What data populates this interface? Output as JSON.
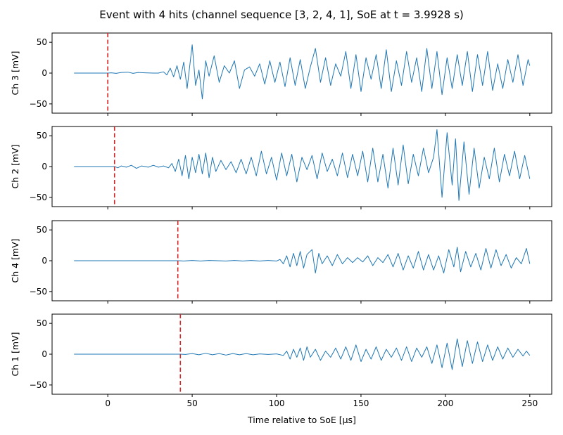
{
  "chart_data": {
    "type": "line",
    "title": "Event with 4 hits (channel sequence [3, 2, 4, 1], SoE at t = 3.9928 s)",
    "xlabel": "Time relative to SoE [µs]",
    "xlim": [
      -33,
      263
    ],
    "ylim": [
      -65,
      65
    ],
    "x_ticks": [
      0,
      50,
      100,
      150,
      200,
      250
    ],
    "x_tick_labels": [
      "0",
      "50",
      "100",
      "150",
      "200",
      "250"
    ],
    "y_ticks": [
      50,
      0,
      -50
    ],
    "y_tick_labels": [
      "50",
      "0",
      "−50"
    ],
    "line_color": "#1f77b4",
    "marker_color": "#d62728",
    "panels": [
      {
        "ylabel": "Ch 3 [mV]",
        "arrival_us": 0,
        "signal": [
          [
            -20,
            0
          ],
          [
            0,
            0
          ],
          [
            2,
            0.5
          ],
          [
            5,
            -0.5
          ],
          [
            8,
            1
          ],
          [
            12,
            1.5
          ],
          [
            15,
            -0.5
          ],
          [
            18,
            1
          ],
          [
            22,
            0.5
          ],
          [
            27,
            0
          ],
          [
            30,
            0
          ],
          [
            33,
            2
          ],
          [
            35,
            -3
          ],
          [
            37,
            8
          ],
          [
            39,
            -6
          ],
          [
            41,
            12
          ],
          [
            43,
            -10
          ],
          [
            45,
            18
          ],
          [
            47,
            -25
          ],
          [
            50,
            46
          ],
          [
            52,
            -20
          ],
          [
            54,
            5
          ],
          [
            56,
            -42
          ],
          [
            58,
            20
          ],
          [
            60,
            -5
          ],
          [
            63,
            28
          ],
          [
            66,
            -15
          ],
          [
            69,
            12
          ],
          [
            72,
            0
          ],
          [
            75,
            20
          ],
          [
            78,
            -25
          ],
          [
            81,
            5
          ],
          [
            84,
            10
          ],
          [
            87,
            -5
          ],
          [
            90,
            15
          ],
          [
            93,
            -18
          ],
          [
            96,
            20
          ],
          [
            99,
            -15
          ],
          [
            102,
            18
          ],
          [
            105,
            -22
          ],
          [
            108,
            25
          ],
          [
            111,
            -20
          ],
          [
            114,
            22
          ],
          [
            117,
            -25
          ],
          [
            120,
            10
          ],
          [
            123,
            40
          ],
          [
            126,
            -15
          ],
          [
            129,
            25
          ],
          [
            132,
            -20
          ],
          [
            135,
            15
          ],
          [
            138,
            -5
          ],
          [
            141,
            35
          ],
          [
            144,
            -25
          ],
          [
            147,
            30
          ],
          [
            150,
            -30
          ],
          [
            153,
            25
          ],
          [
            156,
            -10
          ],
          [
            159,
            30
          ],
          [
            162,
            -25
          ],
          [
            165,
            38
          ],
          [
            168,
            -30
          ],
          [
            171,
            20
          ],
          [
            174,
            -20
          ],
          [
            177,
            35
          ],
          [
            180,
            -15
          ],
          [
            183,
            25
          ],
          [
            186,
            -30
          ],
          [
            189,
            40
          ],
          [
            192,
            -25
          ],
          [
            195,
            35
          ],
          [
            198,
            -35
          ],
          [
            201,
            25
          ],
          [
            204,
            -25
          ],
          [
            207,
            30
          ],
          [
            210,
            -20
          ],
          [
            213,
            35
          ],
          [
            216,
            -30
          ],
          [
            219,
            30
          ],
          [
            222,
            -20
          ],
          [
            225,
            35
          ],
          [
            228,
            -28
          ],
          [
            231,
            15
          ],
          [
            234,
            -25
          ],
          [
            237,
            22
          ],
          [
            240,
            -15
          ],
          [
            243,
            30
          ],
          [
            246,
            -20
          ],
          [
            249,
            22
          ],
          [
            250,
            12
          ]
        ]
      },
      {
        "ylabel": "Ch 2 [mV]",
        "arrival_us": 4,
        "signal": [
          [
            -20,
            0
          ],
          [
            4,
            0
          ],
          [
            6,
            -2
          ],
          [
            8,
            1
          ],
          [
            11,
            -1
          ],
          [
            14,
            2
          ],
          [
            17,
            -3
          ],
          [
            20,
            1
          ],
          [
            24,
            -1
          ],
          [
            27,
            2
          ],
          [
            30,
            -1
          ],
          [
            33,
            1
          ],
          [
            36,
            -2
          ],
          [
            38,
            5
          ],
          [
            40,
            -8
          ],
          [
            42,
            12
          ],
          [
            44,
            -15
          ],
          [
            46,
            18
          ],
          [
            48,
            -20
          ],
          [
            50,
            15
          ],
          [
            52,
            -10
          ],
          [
            54,
            20
          ],
          [
            56,
            -12
          ],
          [
            58,
            22
          ],
          [
            60,
            -18
          ],
          [
            62,
            15
          ],
          [
            64,
            -8
          ],
          [
            67,
            10
          ],
          [
            70,
            -5
          ],
          [
            73,
            8
          ],
          [
            76,
            -10
          ],
          [
            79,
            12
          ],
          [
            82,
            -12
          ],
          [
            85,
            15
          ],
          [
            88,
            -15
          ],
          [
            91,
            25
          ],
          [
            94,
            -12
          ],
          [
            97,
            15
          ],
          [
            100,
            -22
          ],
          [
            103,
            22
          ],
          [
            106,
            -15
          ],
          [
            109,
            20
          ],
          [
            112,
            -25
          ],
          [
            115,
            15
          ],
          [
            118,
            -5
          ],
          [
            121,
            18
          ],
          [
            124,
            -20
          ],
          [
            127,
            22
          ],
          [
            130,
            -8
          ],
          [
            133,
            12
          ],
          [
            136,
            -15
          ],
          [
            139,
            22
          ],
          [
            142,
            -18
          ],
          [
            145,
            20
          ],
          [
            148,
            -15
          ],
          [
            151,
            25
          ],
          [
            154,
            -25
          ],
          [
            157,
            30
          ],
          [
            160,
            -25
          ],
          [
            163,
            20
          ],
          [
            166,
            -35
          ],
          [
            169,
            30
          ],
          [
            172,
            -30
          ],
          [
            175,
            35
          ],
          [
            178,
            -28
          ],
          [
            181,
            20
          ],
          [
            184,
            -15
          ],
          [
            187,
            30
          ],
          [
            190,
            -10
          ],
          [
            193,
            15
          ],
          [
            195,
            60
          ],
          [
            198,
            -50
          ],
          [
            201,
            55
          ],
          [
            204,
            -30
          ],
          [
            206,
            45
          ],
          [
            208,
            -55
          ],
          [
            211,
            40
          ],
          [
            214,
            -45
          ],
          [
            217,
            30
          ],
          [
            220,
            -35
          ],
          [
            223,
            15
          ],
          [
            226,
            -20
          ],
          [
            229,
            30
          ],
          [
            232,
            -25
          ],
          [
            235,
            20
          ],
          [
            238,
            -15
          ],
          [
            241,
            25
          ],
          [
            244,
            -20
          ],
          [
            247,
            18
          ],
          [
            250,
            -20
          ]
        ]
      },
      {
        "ylabel": "Ch 4 [mV]",
        "arrival_us": 41.5,
        "signal": [
          [
            -20,
            0
          ],
          [
            41.5,
            0
          ],
          [
            45,
            -0.5
          ],
          [
            50,
            0.5
          ],
          [
            55,
            -0.5
          ],
          [
            60,
            0.5
          ],
          [
            65,
            0
          ],
          [
            70,
            -0.5
          ],
          [
            75,
            0.5
          ],
          [
            80,
            -0.5
          ],
          [
            85,
            0.5
          ],
          [
            90,
            -0.5
          ],
          [
            95,
            0.5
          ],
          [
            100,
            -0.5
          ],
          [
            102,
            2
          ],
          [
            104,
            -5
          ],
          [
            106,
            8
          ],
          [
            108,
            -10
          ],
          [
            110,
            12
          ],
          [
            112,
            -8
          ],
          [
            114,
            15
          ],
          [
            116,
            -12
          ],
          [
            118,
            10
          ],
          [
            121,
            18
          ],
          [
            123,
            -20
          ],
          [
            125,
            12
          ],
          [
            127,
            -5
          ],
          [
            130,
            8
          ],
          [
            133,
            -8
          ],
          [
            136,
            10
          ],
          [
            139,
            -5
          ],
          [
            142,
            5
          ],
          [
            145,
            -3
          ],
          [
            148,
            5
          ],
          [
            151,
            -2
          ],
          [
            154,
            8
          ],
          [
            157,
            -8
          ],
          [
            160,
            5
          ],
          [
            163,
            -3
          ],
          [
            166,
            10
          ],
          [
            169,
            -10
          ],
          [
            172,
            12
          ],
          [
            175,
            -15
          ],
          [
            178,
            8
          ],
          [
            181,
            -12
          ],
          [
            184,
            15
          ],
          [
            187,
            -15
          ],
          [
            190,
            10
          ],
          [
            193,
            -15
          ],
          [
            196,
            8
          ],
          [
            199,
            -20
          ],
          [
            202,
            18
          ],
          [
            205,
            -10
          ],
          [
            207,
            22
          ],
          [
            209,
            -18
          ],
          [
            212,
            15
          ],
          [
            215,
            -10
          ],
          [
            218,
            12
          ],
          [
            221,
            -15
          ],
          [
            224,
            20
          ],
          [
            227,
            -12
          ],
          [
            230,
            18
          ],
          [
            233,
            -8
          ],
          [
            236,
            10
          ],
          [
            239,
            -12
          ],
          [
            242,
            5
          ],
          [
            245,
            -5
          ],
          [
            248,
            20
          ],
          [
            250,
            -5
          ]
        ]
      },
      {
        "ylabel": "Ch 1 [mV]",
        "arrival_us": 43,
        "signal": [
          [
            -20,
            0
          ],
          [
            43,
            0
          ],
          [
            46,
            -0.5
          ],
          [
            50,
            1
          ],
          [
            54,
            -1
          ],
          [
            58,
            1.5
          ],
          [
            62,
            -1
          ],
          [
            66,
            1
          ],
          [
            70,
            -1.5
          ],
          [
            74,
            1
          ],
          [
            78,
            -1
          ],
          [
            82,
            1
          ],
          [
            86,
            -1
          ],
          [
            90,
            0.5
          ],
          [
            95,
            -0.5
          ],
          [
            100,
            0.5
          ],
          [
            104,
            -2
          ],
          [
            106,
            5
          ],
          [
            108,
            -8
          ],
          [
            110,
            8
          ],
          [
            112,
            -5
          ],
          [
            114,
            10
          ],
          [
            116,
            -10
          ],
          [
            118,
            12
          ],
          [
            120,
            -5
          ],
          [
            123,
            8
          ],
          [
            126,
            -10
          ],
          [
            129,
            5
          ],
          [
            132,
            -5
          ],
          [
            135,
            10
          ],
          [
            138,
            -8
          ],
          [
            141,
            12
          ],
          [
            144,
            -10
          ],
          [
            147,
            15
          ],
          [
            150,
            -12
          ],
          [
            153,
            8
          ],
          [
            156,
            -8
          ],
          [
            159,
            12
          ],
          [
            162,
            -10
          ],
          [
            165,
            8
          ],
          [
            168,
            -5
          ],
          [
            171,
            10
          ],
          [
            174,
            -10
          ],
          [
            177,
            12
          ],
          [
            180,
            -12
          ],
          [
            183,
            10
          ],
          [
            186,
            -5
          ],
          [
            189,
            12
          ],
          [
            192,
            -15
          ],
          [
            195,
            15
          ],
          [
            198,
            -22
          ],
          [
            201,
            18
          ],
          [
            204,
            -25
          ],
          [
            207,
            25
          ],
          [
            210,
            -20
          ],
          [
            213,
            22
          ],
          [
            216,
            -15
          ],
          [
            219,
            20
          ],
          [
            222,
            -12
          ],
          [
            225,
            15
          ],
          [
            228,
            -10
          ],
          [
            231,
            12
          ],
          [
            234,
            -8
          ],
          [
            237,
            10
          ],
          [
            240,
            -5
          ],
          [
            243,
            8
          ],
          [
            246,
            -3
          ],
          [
            248,
            5
          ],
          [
            250,
            -2
          ]
        ]
      }
    ]
  }
}
